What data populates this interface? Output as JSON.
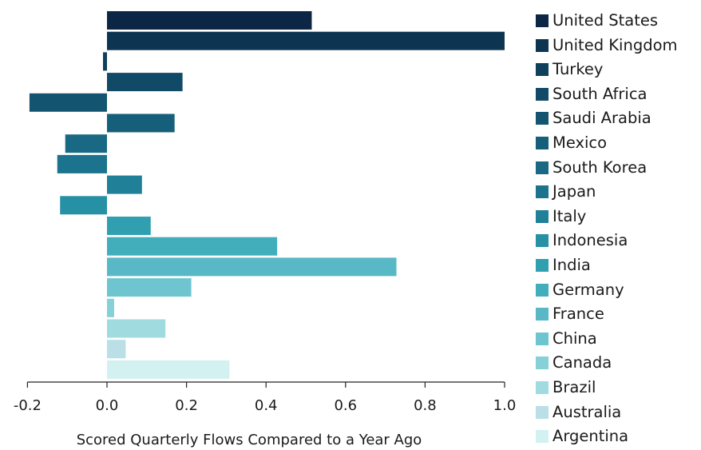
{
  "chart_data": {
    "type": "bar",
    "orientation": "horizontal",
    "xlabel": "Scored Quarterly Flows Compared to a Year Ago",
    "xlim": [
      -0.2,
      1.0
    ],
    "xticks": [
      "-0.2",
      "0.0",
      "0.2",
      "0.4",
      "0.6",
      "0.8",
      "1.0"
    ],
    "grid": false,
    "legend_position": "right",
    "categories": [
      "United States",
      "United Kingdom",
      "Turkey",
      "South Africa",
      "Saudi Arabia",
      "Mexico",
      "South Korea",
      "Japan",
      "Italy",
      "Indonesia",
      "India",
      "Germany",
      "France",
      "China",
      "Canada",
      "Brazil",
      "Australia",
      "Argentina"
    ],
    "values": [
      0.515,
      1.0,
      -0.01,
      0.19,
      -0.195,
      0.17,
      -0.105,
      -0.125,
      0.088,
      -0.118,
      0.11,
      0.428,
      0.728,
      0.212,
      0.018,
      0.147,
      0.047,
      0.308
    ],
    "colors": [
      "#0b2745",
      "#0d3552",
      "#0f405c",
      "#114a66",
      "#135470",
      "#165f7a",
      "#196984",
      "#1c738e",
      "#208097",
      "#2690a4",
      "#30a0b0",
      "#42aebc",
      "#58b8c6",
      "#6ec4cf",
      "#86d0d8",
      "#a0dbe0",
      "#badfe6",
      "#d3f1f1"
    ]
  }
}
